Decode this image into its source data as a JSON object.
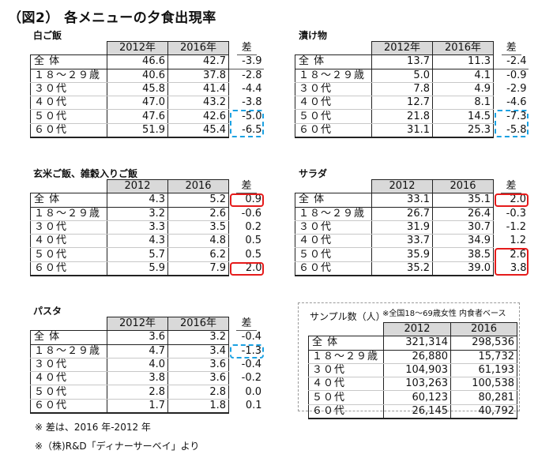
{
  "title": "（図2） 各メニューの夕食出現率",
  "row_labels": [
    "全 体",
    "１８～２９歳",
    "３０代",
    "４０代",
    "５０代",
    "６０代"
  ],
  "tables": [
    {
      "id": "white-rice",
      "heading": "白ご飯",
      "col2012": "2012年",
      "col2016": "2016年",
      "diff_label": "差",
      "rows": [
        {
          "label": "全 体",
          "v2012": "46.6",
          "v2016": "42.7",
          "diff": "-3.9"
        },
        {
          "label": "１８～２９歳",
          "v2012": "40.6",
          "v2016": "37.8",
          "diff": "-2.8"
        },
        {
          "label": "３０代",
          "v2012": "45.8",
          "v2016": "41.4",
          "diff": "-4.4"
        },
        {
          "label": "４０代",
          "v2012": "47.0",
          "v2016": "43.2",
          "diff": "-3.8"
        },
        {
          "label": "５０代",
          "v2012": "47.6",
          "v2016": "42.6",
          "diff": "-5.0"
        },
        {
          "label": "６０代",
          "v2012": "51.9",
          "v2016": "45.4",
          "diff": "-6.5"
        }
      ],
      "highlight": {
        "style": "blue-dashed",
        "rows": [
          "５０代",
          "６０代"
        ]
      }
    },
    {
      "id": "pickles",
      "heading": "漬け物",
      "col2012": "2012年",
      "col2016": "2016年",
      "diff_label": "差",
      "rows": [
        {
          "label": "全 体",
          "v2012": "13.7",
          "v2016": "11.3",
          "diff": "-2.4"
        },
        {
          "label": "１８～２９歳",
          "v2012": "5.0",
          "v2016": "4.1",
          "diff": "-0.9"
        },
        {
          "label": "３０代",
          "v2012": "7.8",
          "v2016": "4.9",
          "diff": "-2.9"
        },
        {
          "label": "４０代",
          "v2012": "12.7",
          "v2016": "8.1",
          "diff": "-4.6"
        },
        {
          "label": "５０代",
          "v2012": "21.8",
          "v2016": "14.5",
          "diff": "-7.3"
        },
        {
          "label": "６０代",
          "v2012": "31.1",
          "v2016": "25.3",
          "diff": "-5.8"
        }
      ],
      "highlight": {
        "style": "blue-dashed",
        "rows": [
          "５０代",
          "６０代"
        ]
      }
    },
    {
      "id": "brown-rice",
      "heading": "玄米ご飯、雑穀入りご飯",
      "col2012": "2012",
      "col2016": "2016",
      "diff_label": "差",
      "rows": [
        {
          "label": "全 体",
          "v2012": "4.3",
          "v2016": "5.2",
          "diff": "0.9"
        },
        {
          "label": "１８～２９歳",
          "v2012": "3.2",
          "v2016": "2.6",
          "diff": "-0.6"
        },
        {
          "label": "３０代",
          "v2012": "3.3",
          "v2016": "3.5",
          "diff": "0.2"
        },
        {
          "label": "４０代",
          "v2012": "4.3",
          "v2016": "4.8",
          "diff": "0.5"
        },
        {
          "label": "５０代",
          "v2012": "5.7",
          "v2016": "6.2",
          "diff": "0.5"
        },
        {
          "label": "６０代",
          "v2012": "5.9",
          "v2016": "7.9",
          "diff": "2.0"
        }
      ],
      "highlight": {
        "style": "red-solid",
        "rows": [
          "全 体",
          "６０代"
        ]
      }
    },
    {
      "id": "salad",
      "heading": "サラダ",
      "col2012": "2012",
      "col2016": "2016",
      "diff_label": "差",
      "rows": [
        {
          "label": "全 体",
          "v2012": "33.1",
          "v2016": "35.1",
          "diff": "2.0"
        },
        {
          "label": "１８～２９歳",
          "v2012": "26.7",
          "v2016": "26.4",
          "diff": "-0.3"
        },
        {
          "label": "３０代",
          "v2012": "31.9",
          "v2016": "30.7",
          "diff": "-1.2"
        },
        {
          "label": "４０代",
          "v2012": "33.7",
          "v2016": "34.9",
          "diff": "1.2"
        },
        {
          "label": "５０代",
          "v2012": "35.9",
          "v2016": "38.5",
          "diff": "2.6"
        },
        {
          "label": "６０代",
          "v2012": "35.2",
          "v2016": "39.0",
          "diff": "3.8"
        }
      ],
      "highlight": {
        "style": "red-solid",
        "rows": [
          "全 体",
          "５０代",
          "６０代"
        ]
      }
    },
    {
      "id": "pasta",
      "heading": "パスタ",
      "col2012": "2012年",
      "col2016": "2016年",
      "diff_label": "差",
      "rows": [
        {
          "label": "全 体",
          "v2012": "3.6",
          "v2016": "3.2",
          "diff": "-0.4"
        },
        {
          "label": "１８～２９歳",
          "v2012": "4.7",
          "v2016": "3.4",
          "diff": "-1.3"
        },
        {
          "label": "３０代",
          "v2012": "4.0",
          "v2016": "3.6",
          "diff": "-0.4"
        },
        {
          "label": "４０代",
          "v2012": "3.8",
          "v2016": "3.6",
          "diff": "-0.2"
        },
        {
          "label": "５０代",
          "v2012": "2.8",
          "v2016": "2.8",
          "diff": "0.0"
        },
        {
          "label": "６０代",
          "v2012": "1.7",
          "v2016": "1.8",
          "diff": "0.1"
        }
      ],
      "highlight": {
        "style": "blue-dashed",
        "rows": [
          "１８～２９歳"
        ]
      }
    }
  ],
  "sample": {
    "heading": "サンプル数（人）",
    "note": "※全国18～69歳女性 内食者ベース",
    "col2012": "2012",
    "col2016": "2016",
    "rows": [
      {
        "label": "全 体",
        "v2012": "321,314",
        "v2016": "298,536"
      },
      {
        "label": "１８～２９歳",
        "v2012": "26,880",
        "v2016": "15,732"
      },
      {
        "label": "３０代",
        "v2012": "104,903",
        "v2016": "61,193"
      },
      {
        "label": "４０代",
        "v2012": "103,263",
        "v2016": "100,538"
      },
      {
        "label": "５０代",
        "v2012": "60,123",
        "v2016": "80,281"
      },
      {
        "label": "６０代",
        "v2012": "26,145",
        "v2016": "40,792"
      }
    ]
  },
  "footnotes": [
    "※ 差は、2016 年-2012 年",
    "※（株)R&D「ディナーサーベイ」より"
  ],
  "colors": {
    "header_fill": "#d9d9d9",
    "highlight_blue": "#1ba1e2",
    "highlight_red": "#e51b1b",
    "border": "#222222"
  }
}
